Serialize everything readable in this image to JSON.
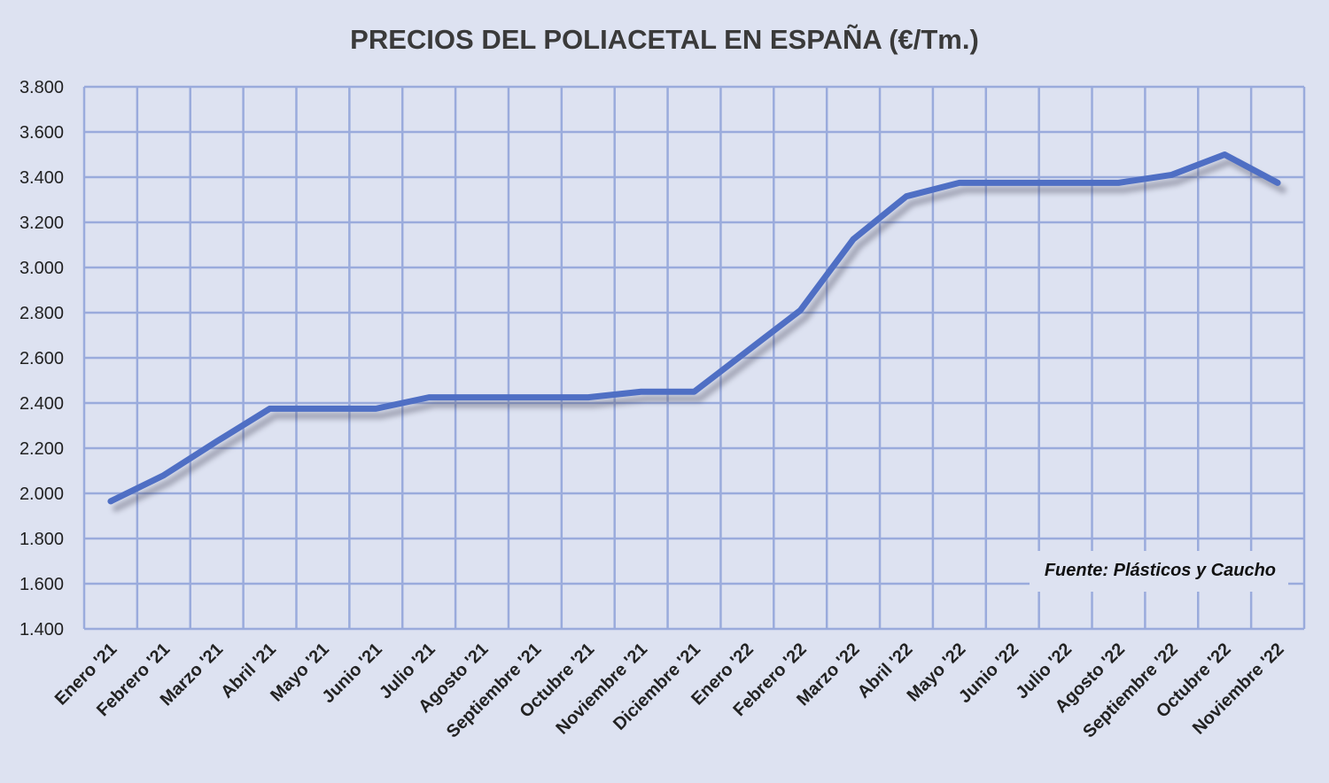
{
  "chart_data": {
    "type": "line",
    "title": "PRECIOS DEL POLIACETAL  EN ESPAÑA (€/Tm.)",
    "xlabel": "",
    "ylabel": "",
    "ylim": [
      1400,
      3800
    ],
    "yticks": [
      "1.400",
      "1.600",
      "1.800",
      "2.000",
      "2.200",
      "2.400",
      "2.600",
      "2.800",
      "3.000",
      "3.200",
      "3.400",
      "3.600",
      "3.800"
    ],
    "ytick_values": [
      1400,
      1600,
      1800,
      2000,
      2200,
      2400,
      2600,
      2800,
      3000,
      3200,
      3400,
      3600,
      3800
    ],
    "grid": true,
    "categories": [
      "Enero '21",
      "Febrero '21",
      "Marzo '21",
      "Abril '21",
      "Mayo '21",
      "Junio '21",
      "Julio '21",
      "Agosto '21",
      "Septiembre '21",
      "Octubre '21",
      "Noviembre '21",
      "Diciembre '21",
      "Enero '22",
      "Febrero '22",
      "Marzo '22",
      "Abril '22",
      "Mayo '22",
      "Junio '22",
      "Julio '22",
      "Agosto '22",
      "Septiembre '22",
      "Octubre '22",
      "Noviembre '22"
    ],
    "series": [
      {
        "name": "Poliacetal",
        "color": "#4f6fc4",
        "values": [
          1965,
          2080,
          2230,
          2375,
          2375,
          2375,
          2425,
          2425,
          2425,
          2425,
          2450,
          2450,
          2630,
          2810,
          3125,
          3315,
          3375,
          3375,
          3375,
          3375,
          3410,
          3500,
          3375
        ]
      }
    ],
    "annotation": "Fuente: Plásticos y Caucho"
  },
  "colors": {
    "background": "#dde2f1",
    "grid": "#9aabdc",
    "line": "#4f6fc4"
  }
}
